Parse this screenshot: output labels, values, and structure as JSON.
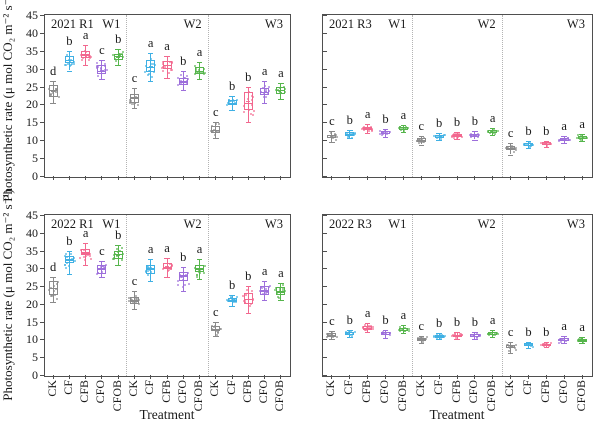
{
  "figure": {
    "ylabel": "Photosynthetic rate (μ mol CO₂ m⁻² s⁻¹)",
    "xlabel": "Treatment"
  },
  "chart_data": {
    "type": "boxplot-grid",
    "ylim": [
      0,
      45
    ],
    "yticks": [
      0,
      5,
      10,
      15,
      20,
      25,
      30,
      35,
      40,
      45
    ],
    "ylabel": "Photosynthetic rate (μ mol CO₂ m⁻² s⁻¹)",
    "xlabel": "Treatment",
    "treatments": [
      "CK",
      "CF",
      "CFB",
      "CFO",
      "CFOB"
    ],
    "water_levels": [
      "W1",
      "W2",
      "W3"
    ],
    "colors": {
      "CK": "#8a8a8a",
      "CF": "#3fb0e4",
      "CFB": "#f2688f",
      "CFO": "#9d6fdb",
      "CFOB": "#55b54b"
    },
    "grid": {
      "rows": [
        "2021",
        "2022"
      ],
      "cols": [
        "R1",
        "R3"
      ]
    },
    "panels": [
      {
        "title": "2021 R1",
        "sections": [
          {
            "label": "W1",
            "boxes": [
              {
                "treatment": "CK",
                "letter": "d",
                "whisker_low": 20.5,
                "q1": 22.0,
                "median": 24.0,
                "q3": 25.5,
                "whisker_high": 26.5
              },
              {
                "treatment": "CF",
                "letter": "b",
                "whisker_low": 29.5,
                "q1": 31.5,
                "median": 32.5,
                "q3": 33.5,
                "whisker_high": 35.0
              },
              {
                "treatment": "CFB",
                "letter": "a",
                "whisker_low": 31.0,
                "q1": 33.0,
                "median": 34.0,
                "q3": 35.0,
                "whisker_high": 36.5
              },
              {
                "treatment": "CFO",
                "letter": "c",
                "whisker_low": 27.0,
                "q1": 28.5,
                "median": 29.5,
                "q3": 31.0,
                "whisker_high": 32.5
              },
              {
                "treatment": "CFOB",
                "letter": "b",
                "whisker_low": 31.0,
                "q1": 32.5,
                "median": 33.5,
                "q3": 34.2,
                "whisker_high": 35.5
              }
            ]
          },
          {
            "label": "W2",
            "boxes": [
              {
                "treatment": "CK",
                "letter": "c",
                "whisker_low": 19.0,
                "q1": 20.5,
                "median": 22.0,
                "q3": 23.0,
                "whisker_high": 24.5
              },
              {
                "treatment": "CF",
                "letter": "a",
                "whisker_low": 26.5,
                "q1": 29.0,
                "median": 30.5,
                "q3": 32.5,
                "whisker_high": 34.5
              },
              {
                "treatment": "CFB",
                "letter": "a",
                "whisker_low": 27.5,
                "q1": 29.8,
                "median": 31.0,
                "q3": 32.2,
                "whisker_high": 33.5
              },
              {
                "treatment": "CFO",
                "letter": "b",
                "whisker_low": 24.0,
                "q1": 25.5,
                "median": 26.5,
                "q3": 27.5,
                "whisker_high": 29.5
              },
              {
                "treatment": "CFOB",
                "letter": "a",
                "whisker_low": 27.0,
                "q1": 28.5,
                "median": 29.5,
                "q3": 30.5,
                "whisker_high": 32.0
              }
            ]
          },
          {
            "label": "W3",
            "boxes": [
              {
                "treatment": "CK",
                "letter": "c",
                "whisker_low": 10.5,
                "q1": 12.0,
                "median": 13.0,
                "q3": 14.0,
                "whisker_high": 15.0
              },
              {
                "treatment": "CF",
                "letter": "b",
                "whisker_low": 18.5,
                "q1": 19.8,
                "median": 20.5,
                "q3": 21.3,
                "whisker_high": 22.5
              },
              {
                "treatment": "CFB",
                "letter": "b",
                "whisker_low": 15.0,
                "q1": 18.5,
                "median": 20.5,
                "q3": 23.5,
                "whisker_high": 25.0
              },
              {
                "treatment": "CFO",
                "letter": "a",
                "whisker_low": 20.5,
                "q1": 22.5,
                "median": 23.5,
                "q3": 24.5,
                "whisker_high": 26.5
              },
              {
                "treatment": "CFOB",
                "letter": "a",
                "whisker_low": 21.5,
                "q1": 23.0,
                "median": 24.0,
                "q3": 25.0,
                "whisker_high": 26.0
              }
            ]
          }
        ]
      },
      {
        "title": "2021 R3",
        "sections": [
          {
            "label": "W1",
            "boxes": [
              {
                "treatment": "CK",
                "letter": "c",
                "whisker_low": 9.5,
                "q1": 10.5,
                "median": 11.0,
                "q3": 11.5,
                "whisker_high": 12.5
              },
              {
                "treatment": "CF",
                "letter": "b",
                "whisker_low": 10.5,
                "q1": 11.2,
                "median": 11.7,
                "q3": 12.2,
                "whisker_high": 13.0
              },
              {
                "treatment": "CFB",
                "letter": "a",
                "whisker_low": 12.0,
                "q1": 12.8,
                "median": 13.3,
                "q3": 13.8,
                "whisker_high": 14.5
              },
              {
                "treatment": "CFO",
                "letter": "b",
                "whisker_low": 11.0,
                "q1": 11.7,
                "median": 12.1,
                "q3": 12.5,
                "whisker_high": 13.2
              },
              {
                "treatment": "CFOB",
                "letter": "a",
                "whisker_low": 12.2,
                "q1": 12.8,
                "median": 13.2,
                "q3": 13.7,
                "whisker_high": 14.3
              }
            ]
          },
          {
            "label": "W2",
            "boxes": [
              {
                "treatment": "CK",
                "letter": "c",
                "whisker_low": 8.8,
                "q1": 9.5,
                "median": 10.0,
                "q3": 10.5,
                "whisker_high": 11.2
              },
              {
                "treatment": "CF",
                "letter": "b",
                "whisker_low": 10.0,
                "q1": 10.6,
                "median": 11.0,
                "q3": 11.4,
                "whisker_high": 12.0
              },
              {
                "treatment": "CFB",
                "letter": "b",
                "whisker_low": 10.3,
                "q1": 11.0,
                "median": 11.4,
                "q3": 11.8,
                "whisker_high": 12.4
              },
              {
                "treatment": "CFO",
                "letter": "b",
                "whisker_low": 10.2,
                "q1": 10.9,
                "median": 11.3,
                "q3": 11.8,
                "whisker_high": 12.5
              },
              {
                "treatment": "CFOB",
                "letter": "a",
                "whisker_low": 11.5,
                "q1": 12.0,
                "median": 12.4,
                "q3": 12.8,
                "whisker_high": 13.3
              }
            ]
          },
          {
            "label": "W3",
            "boxes": [
              {
                "treatment": "CK",
                "letter": "c",
                "whisker_low": 6.0,
                "q1": 7.3,
                "median": 7.9,
                "q3": 8.5,
                "whisker_high": 9.2
              },
              {
                "treatment": "CF",
                "letter": "b",
                "whisker_low": 7.8,
                "q1": 8.4,
                "median": 8.8,
                "q3": 9.2,
                "whisker_high": 9.8
              },
              {
                "treatment": "CFB",
                "letter": "b",
                "whisker_low": 8.2,
                "q1": 8.7,
                "median": 9.0,
                "q3": 9.4,
                "whisker_high": 9.9
              },
              {
                "treatment": "CFO",
                "letter": "a",
                "whisker_low": 9.2,
                "q1": 9.8,
                "median": 10.2,
                "q3": 10.7,
                "whisker_high": 11.3
              },
              {
                "treatment": "CFOB",
                "letter": "a",
                "whisker_low": 9.8,
                "q1": 10.3,
                "median": 10.7,
                "q3": 11.1,
                "whisker_high": 11.7
              }
            ]
          }
        ]
      },
      {
        "title": "2022 R1",
        "sections": [
          {
            "label": "W1",
            "boxes": [
              {
                "treatment": "CK",
                "letter": "d",
                "whisker_low": 20.5,
                "q1": 22.5,
                "median": 24.5,
                "q3": 26.5,
                "whisker_high": 27.5
              },
              {
                "treatment": "CF",
                "letter": "b",
                "whisker_low": 28.5,
                "q1": 31.5,
                "median": 32.5,
                "q3": 33.5,
                "whisker_high": 35.0
              },
              {
                "treatment": "CFB",
                "letter": "a",
                "whisker_low": 31.0,
                "q1": 33.8,
                "median": 34.5,
                "q3": 35.5,
                "whisker_high": 37.0
              },
              {
                "treatment": "CFO",
                "letter": "c",
                "whisker_low": 27.5,
                "q1": 28.5,
                "median": 30.0,
                "q3": 31.0,
                "whisker_high": 32.0
              },
              {
                "treatment": "CFOB",
                "letter": "b",
                "whisker_low": 31.0,
                "q1": 32.5,
                "median": 34.0,
                "q3": 35.0,
                "whisker_high": 36.5
              }
            ]
          },
          {
            "label": "W2",
            "boxes": [
              {
                "treatment": "CK",
                "letter": "c",
                "whisker_low": 18.5,
                "q1": 20.0,
                "median": 21.0,
                "q3": 22.0,
                "whisker_high": 23.5
              },
              {
                "treatment": "CF",
                "letter": "a",
                "whisker_low": 26.5,
                "q1": 28.5,
                "median": 30.0,
                "q3": 31.0,
                "whisker_high": 32.5
              },
              {
                "treatment": "CFB",
                "letter": "a",
                "whisker_low": 27.5,
                "q1": 29.8,
                "median": 30.5,
                "q3": 31.5,
                "whisker_high": 33.0
              },
              {
                "treatment": "CFO",
                "letter": "b",
                "whisker_low": 23.5,
                "q1": 26.5,
                "median": 28.0,
                "q3": 29.0,
                "whisker_high": 30.5
              },
              {
                "treatment": "CFOB",
                "letter": "a",
                "whisker_low": 27.0,
                "q1": 29.0,
                "median": 30.0,
                "q3": 31.0,
                "whisker_high": 32.5
              }
            ]
          },
          {
            "label": "W3",
            "boxes": [
              {
                "treatment": "CK",
                "letter": "c",
                "whisker_low": 11.0,
                "q1": 12.3,
                "median": 13.0,
                "q3": 13.8,
                "whisker_high": 15.0
              },
              {
                "treatment": "CF",
                "letter": "b",
                "whisker_low": 19.5,
                "q1": 20.5,
                "median": 21.0,
                "q3": 21.6,
                "whisker_high": 22.5
              },
              {
                "treatment": "CFB",
                "letter": "b",
                "whisker_low": 17.5,
                "q1": 20.0,
                "median": 21.5,
                "q3": 23.0,
                "whisker_high": 25.0
              },
              {
                "treatment": "CFO",
                "letter": "a",
                "whisker_low": 21.0,
                "q1": 22.5,
                "median": 23.8,
                "q3": 25.0,
                "whisker_high": 26.5
              },
              {
                "treatment": "CFOB",
                "letter": "a",
                "whisker_low": 21.0,
                "q1": 22.5,
                "median": 23.5,
                "q3": 24.8,
                "whisker_high": 26.0
              }
            ]
          }
        ]
      },
      {
        "title": "2022 R3",
        "sections": [
          {
            "label": "W1",
            "boxes": [
              {
                "treatment": "CK",
                "letter": "c",
                "whisker_low": 10.0,
                "q1": 10.7,
                "median": 11.2,
                "q3": 11.7,
                "whisker_high": 12.4
              },
              {
                "treatment": "CF",
                "letter": "b",
                "whisker_low": 10.6,
                "q1": 11.2,
                "median": 11.6,
                "q3": 12.1,
                "whisker_high": 12.8
              },
              {
                "treatment": "CFB",
                "letter": "a",
                "whisker_low": 12.0,
                "q1": 12.7,
                "median": 13.3,
                "q3": 13.9,
                "whisker_high": 14.7
              },
              {
                "treatment": "CFO",
                "letter": "b",
                "whisker_low": 10.5,
                "q1": 11.1,
                "median": 11.5,
                "q3": 12.0,
                "whisker_high": 12.6
              },
              {
                "treatment": "CFOB",
                "letter": "a",
                "whisker_low": 11.7,
                "q1": 12.3,
                "median": 12.8,
                "q3": 13.3,
                "whisker_high": 14.0
              }
            ]
          },
          {
            "label": "W2",
            "boxes": [
              {
                "treatment": "CK",
                "letter": "c",
                "whisker_low": 9.0,
                "q1": 9.6,
                "median": 10.0,
                "q3": 10.4,
                "whisker_high": 11.0
              },
              {
                "treatment": "CF",
                "letter": "b",
                "whisker_low": 10.0,
                "q1": 10.5,
                "median": 10.9,
                "q3": 11.3,
                "whisker_high": 11.9
              },
              {
                "treatment": "CFB",
                "letter": "b",
                "whisker_low": 10.2,
                "q1": 10.7,
                "median": 11.0,
                "q3": 11.4,
                "whisker_high": 12.0
              },
              {
                "treatment": "CFO",
                "letter": "b",
                "whisker_low": 10.1,
                "q1": 10.7,
                "median": 11.0,
                "q3": 11.5,
                "whisker_high": 12.1
              },
              {
                "treatment": "CFOB",
                "letter": "a",
                "whisker_low": 10.6,
                "q1": 11.1,
                "median": 11.5,
                "q3": 12.0,
                "whisker_high": 12.6
              }
            ]
          },
          {
            "label": "W3",
            "boxes": [
              {
                "treatment": "CK",
                "letter": "c",
                "whisker_low": 6.2,
                "q1": 7.5,
                "median": 8.0,
                "q3": 8.5,
                "whisker_high": 9.2
              },
              {
                "treatment": "CF",
                "letter": "b",
                "whisker_low": 7.7,
                "q1": 8.2,
                "median": 8.5,
                "q3": 8.9,
                "whisker_high": 9.4
              },
              {
                "treatment": "CFB",
                "letter": "b",
                "whisker_low": 7.8,
                "q1": 8.2,
                "median": 8.5,
                "q3": 8.8,
                "whisker_high": 9.3
              },
              {
                "treatment": "CFO",
                "letter": "a",
                "whisker_low": 9.0,
                "q1": 9.5,
                "median": 9.9,
                "q3": 10.3,
                "whisker_high": 10.9
              },
              {
                "treatment": "CFOB",
                "letter": "a",
                "whisker_low": 9.1,
                "q1": 9.5,
                "median": 9.8,
                "q3": 10.1,
                "whisker_high": 10.6
              }
            ]
          }
        ]
      }
    ]
  }
}
